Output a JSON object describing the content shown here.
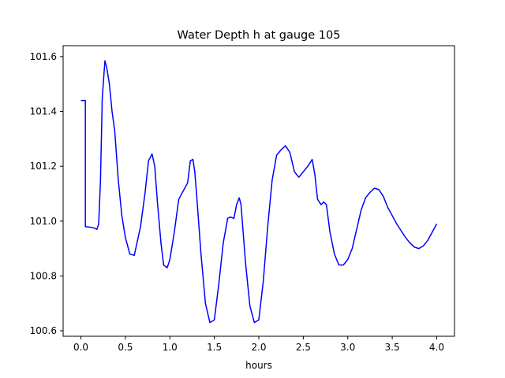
{
  "chart_data": {
    "type": "line",
    "title": "Water Depth h at gauge 105",
    "xlabel": "hours",
    "ylabel": "",
    "xlim": [
      -0.2,
      4.2
    ],
    "ylim": [
      100.58,
      101.64
    ],
    "xticks": [
      0.0,
      0.5,
      1.0,
      1.5,
      2.0,
      2.5,
      3.0,
      3.5,
      4.0
    ],
    "xtick_labels": [
      "0.0",
      "0.5",
      "1.0",
      "1.5",
      "2.0",
      "2.5",
      "3.0",
      "3.5",
      "4.0"
    ],
    "yticks": [
      100.6,
      100.8,
      101.0,
      101.2,
      101.4,
      101.6
    ],
    "ytick_labels": [
      "100.6",
      "100.8",
      "101.0",
      "101.2",
      "101.4",
      "101.6"
    ],
    "grid": false,
    "series": [
      {
        "color": "#0000ff",
        "x": [
          0.0,
          0.05,
          0.05,
          0.1,
          0.15,
          0.18,
          0.2,
          0.22,
          0.24,
          0.27,
          0.29,
          0.32,
          0.35,
          0.38,
          0.42,
          0.46,
          0.5,
          0.55,
          0.6,
          0.63,
          0.67,
          0.72,
          0.76,
          0.8,
          0.83,
          0.86,
          0.9,
          0.93,
          0.97,
          1.0,
          1.05,
          1.1,
          1.15,
          1.2,
          1.23,
          1.26,
          1.28,
          1.3,
          1.35,
          1.4,
          1.45,
          1.5,
          1.55,
          1.6,
          1.65,
          1.68,
          1.72,
          1.75,
          1.78,
          1.8,
          1.85,
          1.9,
          1.95,
          2.0,
          2.05,
          2.1,
          2.15,
          2.2,
          2.25,
          2.3,
          2.35,
          2.4,
          2.45,
          2.5,
          2.55,
          2.6,
          2.63,
          2.66,
          2.7,
          2.73,
          2.76,
          2.8,
          2.85,
          2.9,
          2.95,
          3.0,
          3.05,
          3.1,
          3.15,
          3.2,
          3.25,
          3.3,
          3.35,
          3.4,
          3.45,
          3.5,
          3.55,
          3.6,
          3.65,
          3.7,
          3.75,
          3.8,
          3.85,
          3.9,
          3.95,
          4.0
        ],
        "y": [
          101.44,
          101.44,
          100.98,
          100.978,
          100.975,
          100.97,
          100.99,
          101.15,
          101.45,
          101.585,
          101.56,
          101.5,
          101.4,
          101.33,
          101.15,
          101.02,
          100.94,
          100.88,
          100.875,
          100.92,
          100.98,
          101.1,
          101.22,
          101.245,
          101.2,
          101.07,
          100.92,
          100.84,
          100.83,
          100.86,
          100.96,
          101.08,
          101.11,
          101.14,
          101.22,
          101.225,
          101.18,
          101.1,
          100.88,
          100.7,
          100.63,
          100.64,
          100.77,
          100.92,
          101.01,
          101.015,
          101.01,
          101.06,
          101.085,
          101.06,
          100.85,
          100.69,
          100.63,
          100.64,
          100.78,
          100.98,
          101.15,
          101.24,
          101.26,
          101.275,
          101.25,
          101.18,
          101.16,
          101.18,
          101.2,
          101.225,
          101.17,
          101.08,
          101.06,
          101.07,
          101.06,
          100.96,
          100.88,
          100.84,
          100.84,
          100.86,
          100.9,
          100.97,
          101.04,
          101.085,
          101.105,
          101.12,
          101.115,
          101.09,
          101.05,
          101.02,
          100.99,
          100.965,
          100.94,
          100.92,
          100.905,
          100.9,
          100.91,
          100.93,
          100.96,
          100.99
        ]
      }
    ]
  }
}
